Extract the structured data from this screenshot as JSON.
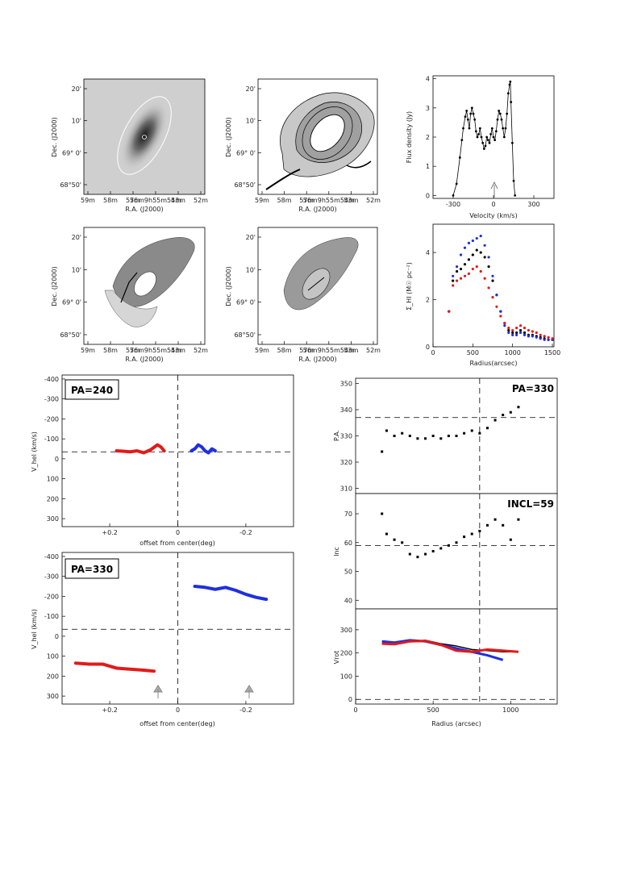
{
  "chart_data": [
    {
      "type": "image",
      "panel": "optical-map",
      "xlabel": "R.A. (J2000)",
      "ylabel": "Dec. (J2000)",
      "x_ticks": [
        "59m",
        "58m",
        "57m",
        "56m9h55m54m",
        "53m",
        "52m"
      ],
      "y_ticks": [
        "20'",
        "10'",
        "69° 0'",
        "68°50'"
      ]
    },
    {
      "type": "contour",
      "panel": "hi-column-density-map",
      "xlabel": "R.A. (J2000)",
      "ylabel": "Dec. (J2000)",
      "x_ticks": [
        "59m",
        "58m",
        "57m",
        "56m9h55m54m",
        "53m",
        "52m"
      ],
      "y_ticks": [
        "20'",
        "10'",
        "69° 0'",
        "68°50'"
      ]
    },
    {
      "type": "line",
      "panel": "global-profile",
      "xlabel": "Velocity (km/s)",
      "ylabel": "Flux density (Jy)",
      "xlim": [
        -450,
        450
      ],
      "ylim": [
        -0.1,
        4.1
      ],
      "x_ticks": [
        -300,
        0,
        300
      ],
      "y_ticks": [
        0,
        1,
        2,
        3,
        4
      ],
      "annotation": "systemic-velocity-arrow",
      "series": [
        {
          "x": [
            -300,
            -275,
            -250,
            -235,
            -225,
            -210,
            -200,
            -190,
            -180,
            -170,
            -160,
            -150,
            -140,
            -130,
            -120,
            -110,
            -100,
            -90,
            -80,
            -70,
            -60,
            -50,
            -40,
            -30,
            -20,
            -10,
            0,
            10,
            20,
            30,
            40,
            50,
            60,
            70,
            80,
            90,
            100,
            110,
            120,
            125,
            130,
            140,
            150,
            160
          ],
          "y": [
            0,
            0.4,
            1.3,
            1.9,
            2.3,
            2.7,
            2.9,
            2.6,
            2.3,
            2.8,
            3.0,
            2.8,
            2.6,
            2.2,
            2.0,
            2.1,
            2.3,
            2.0,
            1.8,
            1.6,
            1.7,
            2.0,
            1.9,
            1.8,
            2.1,
            2.3,
            2.0,
            1.9,
            2.2,
            2.6,
            2.9,
            2.8,
            2.6,
            2.3,
            2.0,
            2.3,
            2.8,
            3.5,
            3.8,
            3.9,
            3.2,
            1.8,
            0.5,
            0
          ]
        }
      ]
    },
    {
      "type": "map",
      "panel": "velocity-field",
      "xlabel": "R.A. (J2000)",
      "ylabel": "Dec. (J2000)",
      "x_ticks": [
        "59m",
        "58m",
        "57m",
        "56m9h55m54m",
        "53m",
        "52m"
      ],
      "y_ticks": [
        "20'",
        "10'",
        "69° 0'",
        "68°50'"
      ]
    },
    {
      "type": "map",
      "panel": "velocity-dispersion",
      "xlabel": "R.A. (J2000)",
      "ylabel": "Dec. (J2000)",
      "x_ticks": [
        "59m",
        "58m",
        "57m",
        "56m9h55m54m",
        "53m",
        "52m"
      ],
      "y_ticks": [
        "20'",
        "10'",
        "69° 0'",
        "68°50'"
      ]
    },
    {
      "type": "scatter",
      "panel": "surface-density",
      "xlabel": "Radius(arcsec)",
      "ylabel": "Σ_HI (M☉ pc⁻²)",
      "xlim": [
        0,
        1520
      ],
      "ylim": [
        0,
        5.2
      ],
      "x_ticks": [
        0,
        500,
        1000,
        1500
      ],
      "y_ticks": [
        0,
        2,
        4
      ],
      "series": [
        {
          "color": "#000000",
          "x": [
            200,
            250,
            300,
            350,
            400,
            450,
            500,
            550,
            600,
            650,
            700,
            750,
            800,
            850,
            900,
            950,
            1000,
            1050,
            1100,
            1150,
            1200,
            1250,
            1300,
            1350,
            1400,
            1450,
            1500
          ],
          "y": [
            1.5,
            2.8,
            3.2,
            3.3,
            3.5,
            3.7,
            3.9,
            4.1,
            4.0,
            3.8,
            3.4,
            2.8,
            2.2,
            1.5,
            1.0,
            0.7,
            0.6,
            0.6,
            0.7,
            0.6,
            0.5,
            0.5,
            0.45,
            0.4,
            0.35,
            0.3,
            0.3
          ]
        },
        {
          "color": "#1f2fe0",
          "x": [
            200,
            250,
            300,
            350,
            400,
            450,
            500,
            550,
            600,
            650,
            700,
            750,
            800,
            850,
            900,
            950,
            1000,
            1050,
            1100,
            1150,
            1200,
            1250,
            1300,
            1350,
            1400,
            1450,
            1500
          ],
          "y": [
            1.5,
            3.0,
            3.4,
            3.9,
            4.2,
            4.4,
            4.5,
            4.6,
            4.7,
            4.3,
            3.8,
            3.0,
            2.2,
            1.5,
            0.9,
            0.6,
            0.5,
            0.5,
            0.6,
            0.5,
            0.45,
            0.45,
            0.4,
            0.35,
            0.3,
            0.3,
            0.3
          ]
        },
        {
          "color": "#e21a1a",
          "x": [
            200,
            250,
            300,
            350,
            400,
            450,
            500,
            550,
            600,
            650,
            700,
            750,
            800,
            850,
            900,
            950,
            1000,
            1050,
            1100,
            1150,
            1200,
            1250,
            1300,
            1350,
            1400,
            1450,
            1500
          ],
          "y": [
            1.5,
            2.6,
            2.8,
            2.9,
            3.0,
            3.1,
            3.3,
            3.4,
            3.2,
            2.9,
            2.5,
            2.1,
            1.7,
            1.3,
            1.0,
            0.8,
            0.7,
            0.8,
            0.9,
            0.8,
            0.7,
            0.65,
            0.6,
            0.5,
            0.45,
            0.4,
            0.35
          ]
        }
      ]
    },
    {
      "type": "scatter",
      "panel": "pv-diagram-pa240",
      "label": "PA=240",
      "xlabel": "offset from center(deg)",
      "ylabel": "V_hel (km/s)",
      "xlim": [
        0.34,
        -0.34
      ],
      "ylim": [
        340,
        -420
      ],
      "x_ticks": [
        "+0.2",
        "0",
        "-0.2"
      ],
      "y_ticks": [
        -400,
        -300,
        -200,
        -100,
        0,
        100,
        200,
        300
      ],
      "systemic_velocity": -35,
      "series": [
        {
          "color": "#e21a1a",
          "x": [
            0.18,
            0.16,
            0.14,
            0.12,
            0.1,
            0.08,
            0.06,
            0.05,
            0.04
          ],
          "y": [
            -40,
            -38,
            -35,
            -40,
            -30,
            -45,
            -70,
            -60,
            -40
          ]
        },
        {
          "color": "#1f2fe0",
          "x": [
            -0.04,
            -0.05,
            -0.06,
            -0.07,
            -0.08,
            -0.09,
            -0.1,
            -0.11
          ],
          "y": [
            -40,
            -50,
            -70,
            -60,
            -40,
            -30,
            -50,
            -40
          ]
        }
      ]
    },
    {
      "type": "scatter",
      "panel": "pv-diagram-pa330",
      "label": "PA=330",
      "xlabel": "offset from center(deg)",
      "ylabel": "V_hel (km/s)",
      "xlim": [
        0.34,
        -0.34
      ],
      "ylim": [
        340,
        -420
      ],
      "x_ticks": [
        "+0.2",
        "0",
        "-0.2"
      ],
      "y_ticks": [
        -400,
        -300,
        -200,
        -100,
        0,
        100,
        200,
        300
      ],
      "systemic_velocity": -35,
      "series": [
        {
          "color": "#e21a1a",
          "x": [
            0.3,
            0.26,
            0.22,
            0.18,
            0.14,
            0.1,
            0.07
          ],
          "y": [
            135,
            140,
            140,
            160,
            165,
            170,
            175
          ]
        },
        {
          "color": "#1f2fe0",
          "x": [
            -0.05,
            -0.08,
            -0.11,
            -0.14,
            -0.17,
            -0.2,
            -0.23,
            -0.26
          ],
          "y": [
            -250,
            -245,
            -235,
            -245,
            -230,
            -210,
            -195,
            -185
          ]
        }
      ]
    },
    {
      "type": "scatter",
      "panel": "position-angle",
      "label": "PA=330",
      "xlabel": "",
      "ylabel": "P.A.",
      "xlim": [
        0,
        1300
      ],
      "ylim": [
        308,
        352
      ],
      "y_ticks": [
        310,
        320,
        330,
        340,
        350
      ],
      "series": [
        {
          "color": "#000000",
          "x": [
            170,
            200,
            250,
            300,
            350,
            400,
            450,
            500,
            550,
            600,
            650,
            700,
            750,
            800,
            850,
            900,
            950,
            1000,
            1050
          ],
          "y": [
            324,
            332,
            330,
            331,
            330,
            329,
            329,
            330,
            329,
            330,
            330,
            331,
            332,
            331,
            333,
            336,
            338,
            339,
            341
          ]
        }
      ]
    },
    {
      "type": "scatter",
      "panel": "inclination",
      "label": "INCL=59",
      "xlabel": "",
      "ylabel": "Inc",
      "xlim": [
        0,
        1300
      ],
      "ylim": [
        37,
        77
      ],
      "y_ticks": [
        40,
        50,
        60,
        70
      ],
      "series": [
        {
          "color": "#000000",
          "x": [
            170,
            200,
            250,
            300,
            350,
            400,
            450,
            500,
            550,
            600,
            650,
            700,
            750,
            800,
            850,
            900,
            950,
            1000,
            1050
          ],
          "y": [
            70,
            63,
            61,
            60,
            56,
            55,
            56,
            57,
            58,
            59,
            60,
            62,
            63,
            64,
            66,
            68,
            66,
            61,
            68
          ]
        }
      ]
    },
    {
      "type": "line",
      "panel": "rotation-curve",
      "xlabel": "Radius (arcsec)",
      "ylabel": "Vrot",
      "xlim": [
        0,
        1300
      ],
      "ylim": [
        -20,
        390
      ],
      "x_ticks": [
        0,
        500,
        1000
      ],
      "y_ticks": [
        0,
        100,
        200,
        300
      ],
      "series": [
        {
          "color": "#000000",
          "x": [
            170,
            250,
            350,
            450,
            550,
            650,
            750,
            850,
            950,
            1050
          ],
          "y": [
            245,
            240,
            250,
            255,
            240,
            230,
            215,
            210,
            205,
            205
          ]
        },
        {
          "color": "#1f2fe0",
          "x": [
            170,
            250,
            350,
            450,
            550,
            650,
            750,
            850,
            950
          ],
          "y": [
            250,
            245,
            255,
            250,
            235,
            220,
            205,
            190,
            170
          ]
        },
        {
          "color": "#e21a1a",
          "x": [
            170,
            250,
            350,
            450,
            550,
            650,
            750,
            850,
            950,
            1050
          ],
          "y": [
            240,
            238,
            250,
            252,
            235,
            210,
            205,
            215,
            210,
            205
          ]
        }
      ]
    }
  ]
}
